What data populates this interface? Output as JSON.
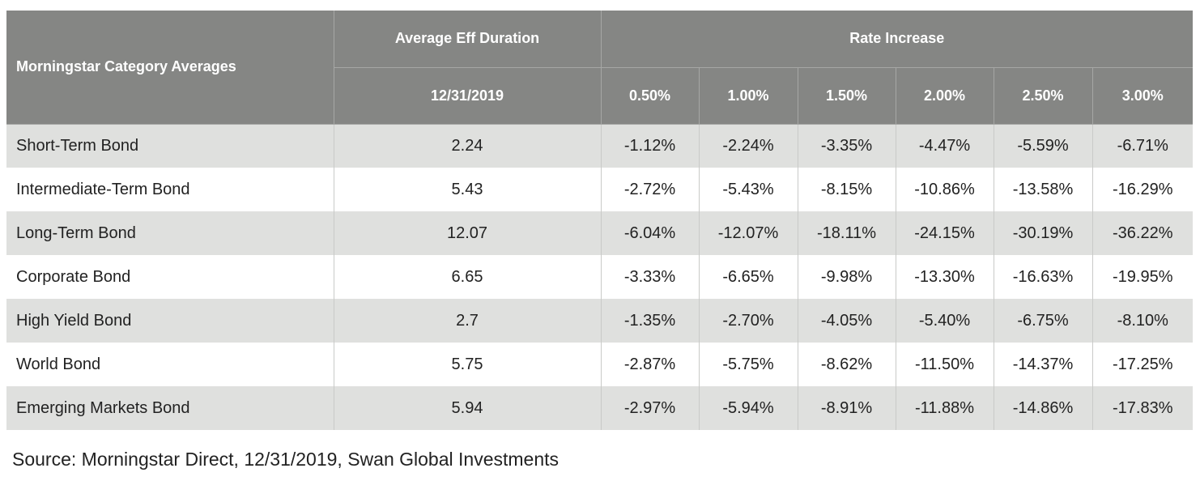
{
  "chart_data": {
    "type": "table",
    "header": {
      "category_label": "Morningstar Category Averages",
      "duration_label": "Average Eff Duration",
      "duration_date": "12/31/2019",
      "rate_increase_label": "Rate Increase",
      "rate_columns": [
        "0.50%",
        "1.00%",
        "1.50%",
        "2.00%",
        "2.50%",
        "3.00%"
      ]
    },
    "rows": [
      {
        "name": "Short-Term Bond",
        "duration": "2.24",
        "values": [
          "-1.12%",
          "-2.24%",
          "-3.35%",
          "-4.47%",
          "-5.59%",
          "-6.71%"
        ]
      },
      {
        "name": "Intermediate-Term Bond",
        "duration": "5.43",
        "values": [
          "-2.72%",
          "-5.43%",
          "-8.15%",
          "-10.86%",
          "-13.58%",
          "-16.29%"
        ]
      },
      {
        "name": "Long-Term Bond",
        "duration": "12.07",
        "values": [
          "-6.04%",
          "-12.07%",
          "-18.11%",
          "-24.15%",
          "-30.19%",
          "-36.22%"
        ]
      },
      {
        "name": "Corporate Bond",
        "duration": "6.65",
        "values": [
          "-3.33%",
          "-6.65%",
          "-9.98%",
          "-13.30%",
          "-16.63%",
          "-19.95%"
        ]
      },
      {
        "name": "High Yield Bond",
        "duration": "2.7",
        "values": [
          "-1.35%",
          "-2.70%",
          "-4.05%",
          "-5.40%",
          "-6.75%",
          "-8.10%"
        ]
      },
      {
        "name": "World Bond",
        "duration": "5.75",
        "values": [
          "-2.87%",
          "-5.75%",
          "-8.62%",
          "-11.50%",
          "-14.37%",
          "-17.25%"
        ]
      },
      {
        "name": "Emerging Markets Bond",
        "duration": "5.94",
        "values": [
          "-2.97%",
          "-5.94%",
          "-8.91%",
          "-11.88%",
          "-14.86%",
          "-17.83%"
        ]
      }
    ]
  },
  "source": "Source: Morningstar Direct, 12/31/2019, Swan Global Investments",
  "colors": {
    "header_bg": "#858684",
    "header_text": "#ffffff",
    "row_shaded": "#dfe0de",
    "row_plain": "#ffffff",
    "body_text": "#222222"
  }
}
